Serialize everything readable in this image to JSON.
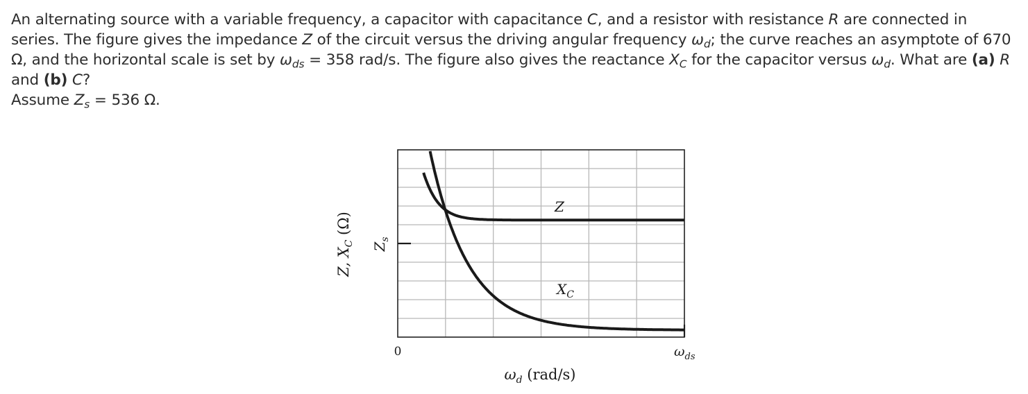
{
  "problem": {
    "s1": "An alternating source with a variable frequency, a capacitor with capacitance ",
    "C": "C",
    "s2": ", and a resistor with resistance ",
    "R": "R",
    "s3": " are connected in series. The figure gives the impedance ",
    "Z": "Z",
    "s4": " of the circuit versus the driving angular frequency ",
    "omega": "ω",
    "d_sub": "d",
    "s5": "; the curve reaches an asymptote of 670 Ω, and the horizontal scale is set by ",
    "ds_sub": "ds",
    "s6": " = 358 rad/s. The figure also gives the reactance ",
    "X": "X",
    "C_sub": "C",
    "s7": " for the capacitor versus ",
    "s8": ". What are ",
    "part_a": "(a)",
    "s9": " and ",
    "part_b": "(b)",
    "s10": "?",
    "assume_prefix": "Assume ",
    "s_sub": "s",
    "assume_value": " = 536 Ω."
  },
  "chart_data": {
    "type": "line",
    "series": [
      {
        "name": "Z",
        "note": "impedance, approaches asymptote at 670 Ω"
      },
      {
        "name": "X",
        "sub": "C",
        "note": "capacitive reactance, decreasing in ω_d"
      }
    ],
    "y_axis_label": "Z, X",
    "y_axis_sub": "C",
    "y_axis_unit": " (Ω)",
    "y_tick_label": "Z",
    "y_tick_sub": "s",
    "x_axis_label": "ω",
    "x_axis_sub": "d",
    "x_axis_unit": " (rad/s)",
    "x_tick_start": "0",
    "x_tick_end": "ω",
    "x_tick_end_sub": "ds",
    "asymptote_ohm": 670,
    "Zs_ohm": 536,
    "omega_ds_rad_s": 358,
    "grid": true
  }
}
